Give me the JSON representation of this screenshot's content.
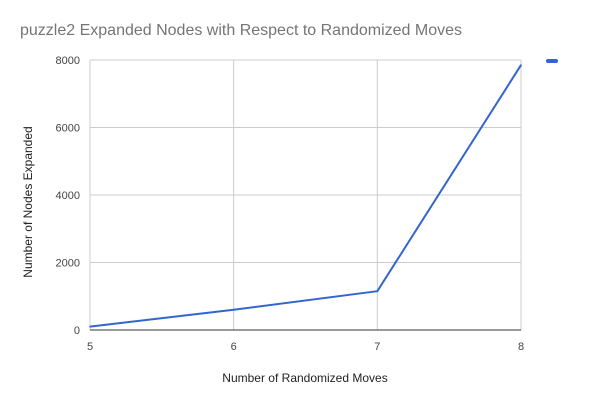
{
  "chart_data": {
    "type": "line",
    "title": "puzzle2 Expanded Nodes with Respect to Randomized Moves",
    "xlabel": "Number of Randomized Moves",
    "ylabel": "Number of Nodes Expanded",
    "x": [
      5,
      6,
      7,
      8
    ],
    "series": [
      {
        "values": [
          100,
          600,
          1150,
          7850
        ],
        "color": "#3366cc"
      }
    ],
    "xticks": [
      "5",
      "6",
      "7",
      "8"
    ],
    "yticks": [
      "0",
      "2000",
      "4000",
      "6000",
      "8000"
    ],
    "xlim": [
      5,
      8
    ],
    "ylim": [
      0,
      8000
    ],
    "grid": true,
    "legend_position": "right"
  }
}
